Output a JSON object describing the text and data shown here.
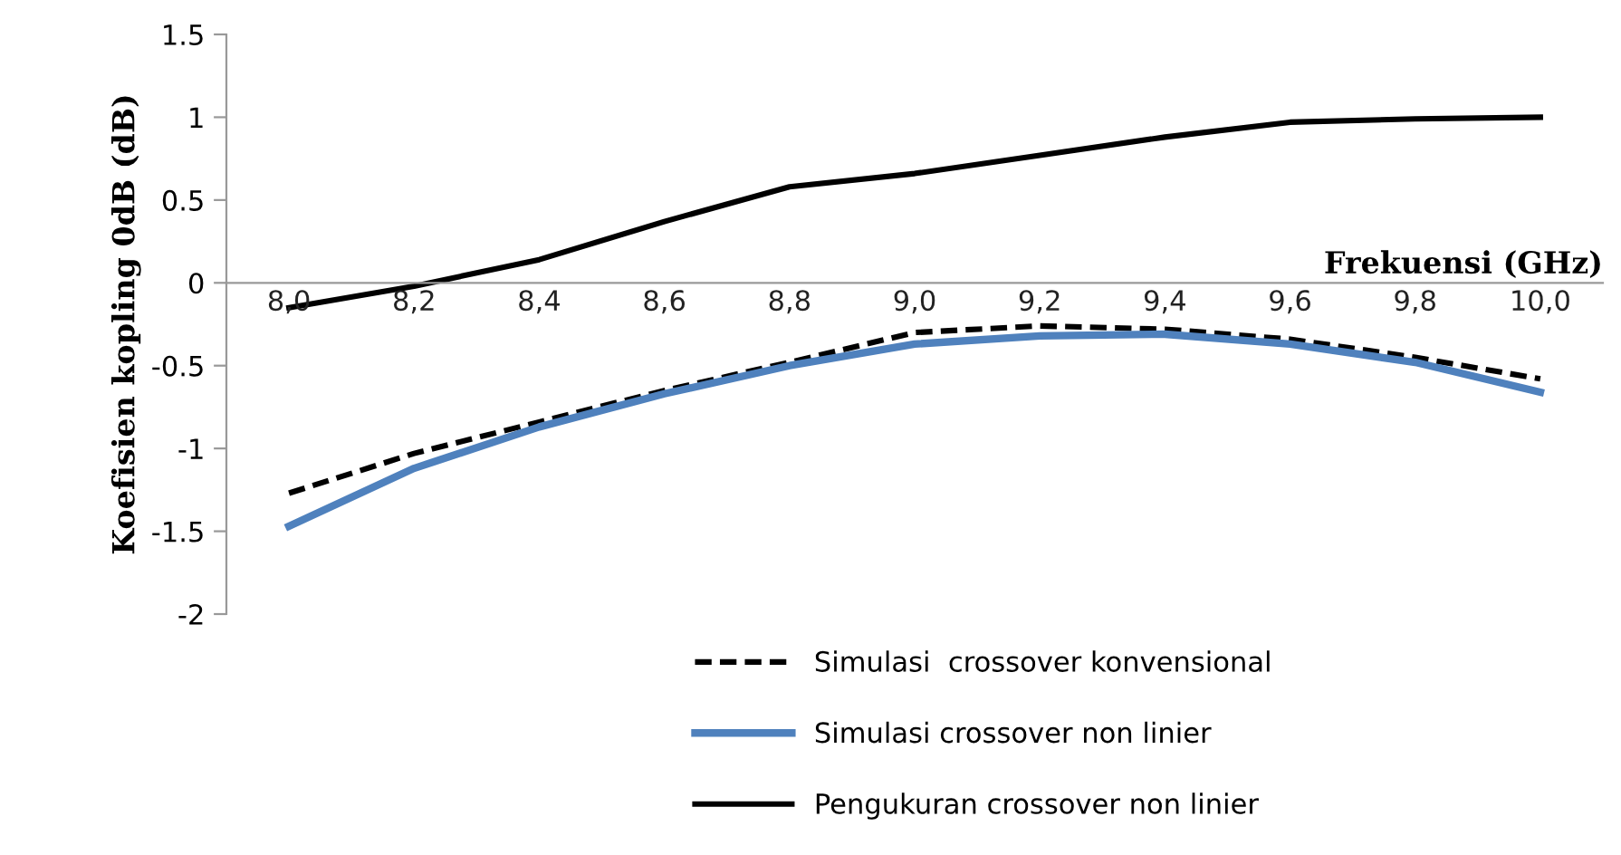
{
  "chart_data": {
    "type": "line",
    "xlabel": "Frekuensi (GHz)",
    "ylabel": "Koefisien kopling 0dB (dB)",
    "categories": [
      "8,0",
      "8,2",
      "8,4",
      "8,6",
      "8,8",
      "9,0",
      "9,2",
      "9,4",
      "9,6",
      "9,8",
      "10,0"
    ],
    "series": [
      {
        "name": "Simulasi  crossover konvensional",
        "color": "#000000",
        "line_style": "dashed",
        "values": [
          -1.27,
          -1.03,
          -0.84,
          -0.65,
          -0.48,
          -0.3,
          -0.26,
          -0.28,
          -0.34,
          -0.45,
          -0.58
        ]
      },
      {
        "name": "Simulasi crossover non linier",
        "color": "#4f81bd",
        "line_style": "solid",
        "values": [
          -1.47,
          -1.12,
          -0.87,
          -0.67,
          -0.5,
          -0.37,
          -0.32,
          -0.31,
          -0.37,
          -0.48,
          -0.66
        ]
      },
      {
        "name": "Pengukuran crossover non linier",
        "color": "#000000",
        "line_style": "solid",
        "values": [
          -0.15,
          -0.02,
          0.14,
          0.37,
          0.58,
          0.66,
          0.77,
          0.88,
          0.97,
          0.99,
          1.0
        ]
      }
    ],
    "ylim": [
      -2,
      1.5
    ],
    "yticks": [
      -2,
      -1.5,
      -1,
      -0.5,
      0,
      0.5,
      1,
      1.5
    ],
    "grid": false,
    "legend": "bottom",
    "marker": "none"
  }
}
